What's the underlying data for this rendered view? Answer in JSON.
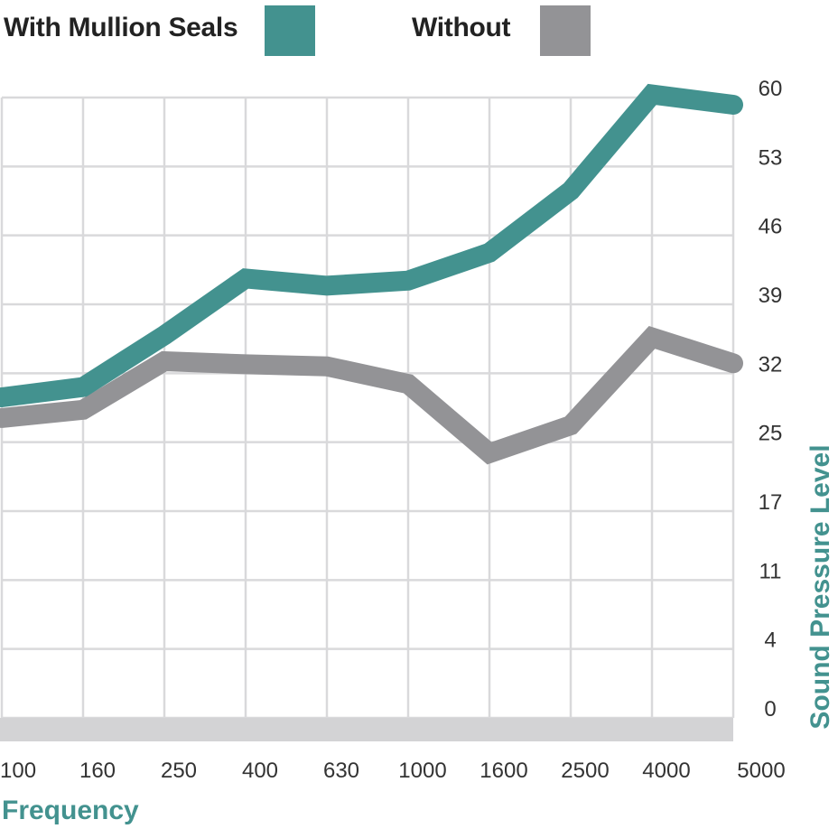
{
  "chart_data": {
    "type": "line",
    "x": [
      "100",
      "160",
      "250",
      "400",
      "630",
      "1000",
      "1600",
      "2500",
      "4000",
      "5000"
    ],
    "series": [
      {
        "name": "With Mullion Seals",
        "color": "#43928f",
        "values": [
          31,
          32,
          37,
          42.5,
          41.8,
          42.3,
          45,
          51,
          60.3,
          59.3
        ]
      },
      {
        "name": "Without",
        "color": "#939396",
        "values": [
          29,
          29.8,
          34.5,
          34.2,
          34,
          32.3,
          25.6,
          28.3,
          36.8,
          34.3
        ]
      }
    ],
    "yticks": [
      "0",
      "4",
      "11",
      "17",
      "25",
      "32",
      "39",
      "46",
      "53",
      "60"
    ],
    "ylim": [
      0,
      60
    ],
    "xlabel": "Frequency",
    "ylabel": "Sound Pressure Level",
    "label_color": "#43928f",
    "grid": true,
    "legend": "top"
  }
}
